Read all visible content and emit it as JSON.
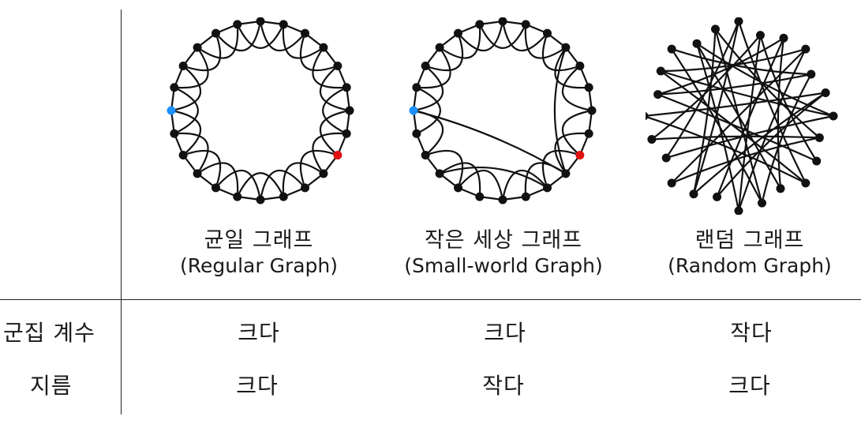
{
  "columns": [
    {
      "name_ko": "균일 그래프",
      "name_en": "(Regular Graph)"
    },
    {
      "name_ko": "작은 세상 그래프",
      "name_en": "(Small-world Graph)"
    },
    {
      "name_ko": "랜덤 그래프",
      "name_en": "(Random Graph)"
    }
  ],
  "rows": [
    {
      "label": "군집 계수",
      "values": [
        "크다",
        "크다",
        "작다"
      ]
    },
    {
      "label": "지름",
      "values": [
        "크다",
        "작다",
        "크다"
      ]
    }
  ],
  "colors": {
    "node": "#111111",
    "highlight_a": "#1e90ff",
    "highlight_b": "#e01010"
  }
}
